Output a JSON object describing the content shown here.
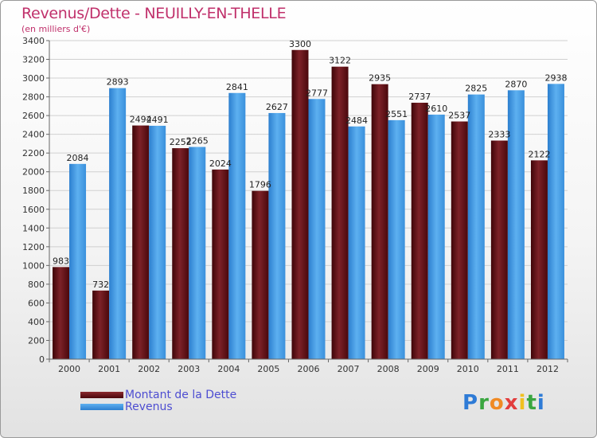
{
  "title": "Revenus/Dette - NEUILLY-EN-THELLE",
  "subtitle": "(en milliers d'€)",
  "logo": {
    "text": "Proxiti",
    "colors": [
      "#2e7bd6",
      "#3aa640",
      "#f08a24",
      "#e23d3d",
      "#f0c020",
      "#3aa640",
      "#2e7bd6"
    ]
  },
  "legend": [
    {
      "label": "Montant de la Dette",
      "color": "#6b0f14"
    },
    {
      "label": "Revenus",
      "color": "#2b87d8"
    }
  ],
  "chart_data": {
    "type": "bar",
    "title": "Revenus/Dette - NEUILLY-EN-THELLE",
    "ylabel": "(en milliers d'€)",
    "xlabel": "",
    "categories": [
      "2000",
      "2001",
      "2002",
      "2003",
      "2004",
      "2005",
      "2006",
      "2007",
      "2008",
      "2009",
      "2010",
      "2011",
      "2012"
    ],
    "series": [
      {
        "name": "Montant de la Dette",
        "values": [
          983,
          732,
          2494,
          2252,
          2024,
          1796,
          3300,
          3122,
          2935,
          2737,
          2537,
          2333,
          2122
        ]
      },
      {
        "name": "Revenus",
        "values": [
          2084,
          2893,
          2491,
          2265,
          2841,
          2627,
          2777,
          2484,
          2551,
          2610,
          2825,
          2870,
          2938
        ]
      }
    ],
    "ylim": [
      0,
      3400
    ],
    "yticks": [
      0,
      200,
      400,
      600,
      800,
      1000,
      1200,
      1400,
      1600,
      1800,
      2000,
      2200,
      2400,
      2600,
      2800,
      3000,
      3200,
      3400
    ],
    "grid": true,
    "legend_position": "bottom-left"
  }
}
